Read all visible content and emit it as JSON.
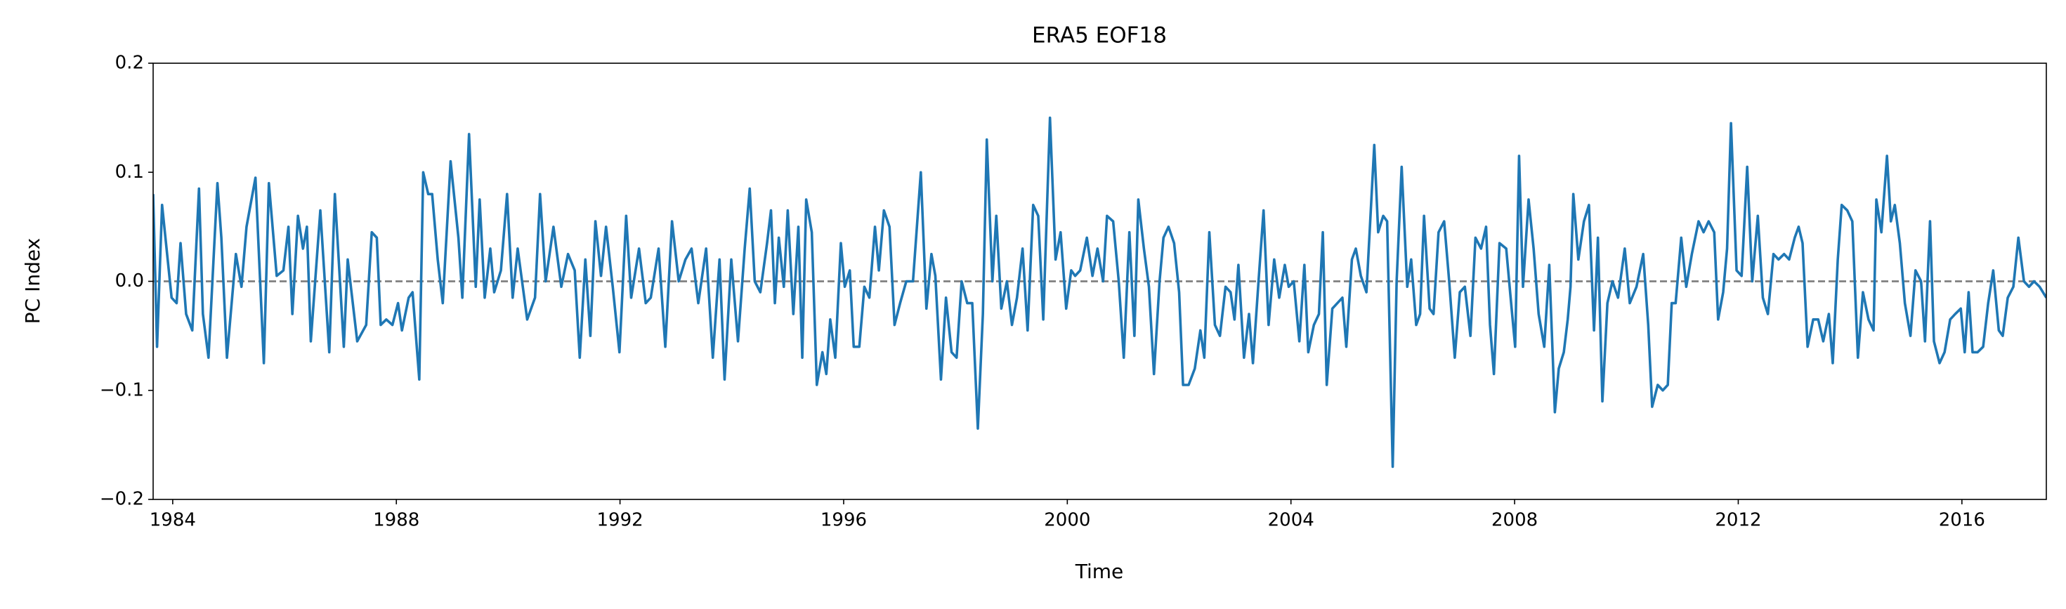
{
  "chart_data": {
    "type": "line",
    "title": "ERA5  EOF18",
    "xlabel": "Time",
    "ylabel": "PC Index",
    "color": "#1f77b4",
    "x": [
      1983.65,
      1983.72,
      1983.81,
      1983.98,
      1984.07,
      1984.14,
      1984.24,
      1984.35,
      1984.47,
      1984.54,
      1984.64,
      1984.8,
      1984.87,
      1984.97,
      1985.13,
      1985.23,
      1985.32,
      1985.48,
      1985.63,
      1985.72,
      1985.86,
      1985.98,
      1986.07,
      1986.14,
      1986.24,
      1986.33,
      1986.4,
      1986.47,
      1986.64,
      1986.8,
      1986.9,
      1987.06,
      1987.13,
      1987.3,
      1987.46,
      1987.56,
      1987.65,
      1987.72,
      1987.82,
      1987.93,
      1988.03,
      1988.1,
      1988.22,
      1988.29,
      1988.41,
      1988.48,
      1988.57,
      1988.64,
      1988.74,
      1988.83,
      1988.97,
      1989.11,
      1989.18,
      1989.3,
      1989.42,
      1989.49,
      1989.58,
      1989.68,
      1989.75,
      1989.87,
      1989.98,
      1990.08,
      1990.17,
      1990.34,
      1990.48,
      1990.57,
      1990.67,
      1990.81,
      1990.95,
      1991.07,
      1991.19,
      1991.28,
      1991.38,
      1991.47,
      1991.56,
      1991.66,
      1991.75,
      1991.87,
      1991.99,
      1992.11,
      1992.2,
      1992.34,
      1992.46,
      1992.55,
      1992.69,
      1992.81,
      1992.93,
      1993.05,
      1993.17,
      1993.28,
      1993.4,
      1993.54,
      1993.66,
      1993.78,
      1993.87,
      1993.99,
      1994.11,
      1994.23,
      1994.32,
      1994.41,
      1994.51,
      1994.63,
      1994.7,
      1994.77,
      1994.84,
      1994.93,
      1995.0,
      1995.1,
      1995.19,
      1995.26,
      1995.33,
      1995.43,
      1995.52,
      1995.62,
      1995.69,
      1995.76,
      1995.85,
      1995.95,
      1996.02,
      1996.11,
      1996.18,
      1996.28,
      1996.37,
      1996.46,
      1996.56,
      1996.63,
      1996.72,
      1996.82,
      1996.91,
      1997.01,
      1997.12,
      1997.24,
      1997.38,
      1997.48,
      1997.57,
      1997.64,
      1997.74,
      1997.83,
      1997.93,
      1998.02,
      1998.11,
      1998.21,
      1998.3,
      1998.4,
      1998.49,
      1998.56,
      1998.66,
      1998.73,
      1998.82,
      1998.92,
      1999.01,
      1999.1,
      1999.2,
      1999.29,
      1999.39,
      1999.48,
      1999.57,
      1999.69,
      1999.79,
      1999.88,
      1999.98,
      2000.07,
      2000.14,
      2000.23,
      2000.35,
      2000.45,
      2000.54,
      2000.64,
      2000.71,
      2000.82,
      2000.92,
      2001.01,
      2001.11,
      2001.2,
      2001.27,
      2001.37,
      2001.46,
      2001.55,
      2001.65,
      2001.72,
      2001.81,
      2001.91,
      2002.0,
      2002.07,
      2002.17,
      2002.28,
      2002.38,
      2002.45,
      2002.54,
      2002.64,
      2002.73,
      2002.83,
      2002.92,
      2002.99,
      2003.06,
      2003.16,
      2003.25,
      2003.32,
      2003.42,
      2003.51,
      2003.6,
      2003.7,
      2003.79,
      2003.89,
      2003.96,
      2004.05,
      2004.15,
      2004.24,
      2004.31,
      2004.41,
      2004.5,
      2004.57,
      2004.64,
      2004.74,
      2004.83,
      2004.92,
      2004.99,
      2005.09,
      2005.16,
      2005.25,
      2005.35,
      2005.49,
      2005.56,
      2005.65,
      2005.72,
      2005.82,
      2005.89,
      2005.98,
      2006.08,
      2006.15,
      2006.24,
      2006.31,
      2006.38,
      2006.48,
      2006.55,
      2006.64,
      2006.74,
      2006.83,
      2006.93,
      2007.02,
      2007.11,
      2007.21,
      2007.3,
      2007.4,
      2007.49,
      2007.56,
      2007.63,
      2007.73,
      2007.85,
      2007.92,
      2008.01,
      2008.08,
      2008.15,
      2008.25,
      2008.34,
      2008.43,
      2008.53,
      2008.62,
      2008.72,
      2008.79,
      2008.88,
      2008.95,
      2009.0,
      2009.05,
      2009.14,
      2009.24,
      2009.33,
      2009.42,
      2009.49,
      2009.57,
      2009.66,
      2009.75,
      2009.85,
      2009.97,
      2010.06,
      2010.18,
      2010.3,
      2010.39,
      2010.46,
      2010.56,
      2010.65,
      2010.74,
      2010.81,
      2010.88,
      2010.98,
      2011.07,
      2011.17,
      2011.29,
      2011.38,
      2011.47,
      2011.57,
      2011.64,
      2011.73,
      2011.8,
      2011.87,
      2011.97,
      2012.06,
      2012.16,
      2012.25,
      2012.35,
      2012.44,
      2012.53,
      2012.63,
      2012.72,
      2012.82,
      2012.91,
      2013.01,
      2013.08,
      2013.15,
      2013.24,
      2013.34,
      2013.43,
      2013.52,
      2013.62,
      2013.69,
      2013.78,
      2013.85,
      2013.95,
      2014.04,
      2014.14,
      2014.23,
      2014.33,
      2014.42,
      2014.47,
      2014.56,
      2014.66,
      2014.73,
      2014.8,
      2014.89,
      2014.98,
      2015.08,
      2015.17,
      2015.27,
      2015.34,
      2015.43,
      2015.5,
      2015.6,
      2015.69,
      2015.79,
      2015.88,
      2015.98,
      2016.05,
      2016.12,
      2016.19,
      2016.28,
      2016.38,
      2016.47,
      2016.56,
      2016.66,
      2016.73,
      2016.82,
      2016.92,
      2017.01,
      2017.11,
      2017.2,
      2017.29,
      2017.39,
      2017.51
    ],
    "values": [
      0.08,
      -0.06,
      0.07,
      -0.015,
      -0.02,
      0.035,
      -0.03,
      -0.045,
      0.085,
      -0.03,
      -0.07,
      0.09,
      0.04,
      -0.07,
      0.025,
      -0.005,
      0.05,
      0.095,
      -0.075,
      0.09,
      0.005,
      0.01,
      0.05,
      -0.03,
      0.06,
      0.03,
      0.05,
      -0.055,
      0.065,
      -0.065,
      0.08,
      -0.06,
      0.02,
      -0.055,
      -0.04,
      0.045,
      0.04,
      -0.04,
      -0.035,
      -0.04,
      -0.02,
      -0.045,
      -0.015,
      -0.01,
      -0.09,
      0.1,
      0.08,
      0.08,
      0.02,
      -0.02,
      0.11,
      0.04,
      -0.015,
      0.135,
      -0.005,
      0.075,
      -0.015,
      0.03,
      -0.01,
      0.01,
      0.08,
      -0.015,
      0.03,
      -0.035,
      -0.015,
      0.08,
      0.0,
      0.05,
      -0.005,
      0.025,
      0.01,
      -0.07,
      0.02,
      -0.05,
      0.055,
      0.005,
      0.05,
      -0.005,
      -0.065,
      0.06,
      -0.015,
      0.03,
      -0.02,
      -0.015,
      0.03,
      -0.06,
      0.055,
      0.0,
      0.02,
      0.03,
      -0.02,
      0.03,
      -0.07,
      0.02,
      -0.09,
      0.02,
      -0.055,
      0.03,
      0.085,
      0.0,
      -0.01,
      0.035,
      0.065,
      -0.02,
      0.04,
      -0.005,
      0.065,
      -0.03,
      0.05,
      -0.07,
      0.075,
      0.045,
      -0.095,
      -0.065,
      -0.085,
      -0.035,
      -0.07,
      0.035,
      -0.005,
      0.01,
      -0.06,
      -0.06,
      -0.005,
      -0.015,
      0.05,
      0.01,
      0.065,
      0.05,
      -0.04,
      -0.02,
      0.0,
      0.0,
      0.1,
      -0.025,
      0.025,
      0.005,
      -0.09,
      -0.015,
      -0.065,
      -0.07,
      0.0,
      -0.02,
      -0.02,
      -0.135,
      -0.03,
      0.13,
      0.0,
      0.06,
      -0.025,
      0.0,
      -0.04,
      -0.015,
      0.03,
      -0.045,
      0.07,
      0.06,
      -0.035,
      0.15,
      0.02,
      0.045,
      -0.025,
      0.01,
      0.005,
      0.01,
      0.04,
      0.005,
      0.03,
      0.0,
      0.06,
      0.055,
      0.0,
      -0.07,
      0.045,
      -0.05,
      0.075,
      0.03,
      -0.005,
      -0.085,
      0.0,
      0.04,
      0.05,
      0.035,
      -0.01,
      -0.095,
      -0.095,
      -0.08,
      -0.045,
      -0.07,
      0.045,
      -0.04,
      -0.05,
      -0.005,
      -0.01,
      -0.035,
      0.015,
      -0.07,
      -0.03,
      -0.075,
      0.0,
      0.065,
      -0.04,
      0.02,
      -0.015,
      0.015,
      -0.005,
      0.0,
      -0.055,
      0.015,
      -0.065,
      -0.04,
      -0.03,
      0.045,
      -0.095,
      -0.025,
      -0.02,
      -0.015,
      -0.06,
      0.02,
      0.03,
      0.005,
      -0.01,
      0.125,
      0.045,
      0.06,
      0.055,
      -0.17,
      0.0,
      0.105,
      -0.005,
      0.02,
      -0.04,
      -0.03,
      0.06,
      -0.025,
      -0.03,
      0.045,
      0.055,
      0.0,
      -0.07,
      -0.01,
      -0.005,
      -0.05,
      0.04,
      0.03,
      0.05,
      -0.04,
      -0.085,
      0.035,
      0.03,
      -0.01,
      -0.06,
      0.115,
      -0.005,
      0.075,
      0.03,
      -0.03,
      -0.06,
      0.015,
      -0.12,
      -0.08,
      -0.065,
      -0.035,
      -0.005,
      0.08,
      0.02,
      0.055,
      0.07,
      -0.045,
      0.04,
      -0.11,
      -0.02,
      0.0,
      -0.015,
      0.03,
      -0.02,
      -0.005,
      0.025,
      -0.04,
      -0.115,
      -0.095,
      -0.1,
      -0.095,
      -0.02,
      -0.02,
      0.04,
      -0.005,
      0.025,
      0.055,
      0.045,
      0.055,
      0.045,
      -0.035,
      -0.01,
      0.03,
      0.145,
      0.01,
      0.005,
      0.105,
      0.0,
      0.06,
      -0.015,
      -0.03,
      0.025,
      0.02,
      0.025,
      0.02,
      0.04,
      0.05,
      0.035,
      -0.06,
      -0.035,
      -0.035,
      -0.055,
      -0.03,
      -0.075,
      0.02,
      0.07,
      0.065,
      0.055,
      -0.07,
      -0.01,
      -0.035,
      -0.045,
      0.075,
      0.045,
      0.115,
      0.055,
      0.07,
      0.035,
      -0.02,
      -0.05,
      0.01,
      0.0,
      -0.055,
      0.055,
      -0.055,
      -0.075,
      -0.065,
      -0.035,
      -0.03,
      -0.025,
      -0.065,
      -0.01,
      -0.065,
      -0.065,
      -0.06,
      -0.02,
      0.01,
      -0.045,
      -0.05,
      -0.015,
      -0.005,
      0.04,
      0.0,
      -0.005,
      0.0,
      -0.005,
      -0.015
    ],
    "xlim": [
      1983.65,
      2017.51
    ],
    "xticks": [
      1984,
      1988,
      1992,
      1996,
      2000,
      2004,
      2008,
      2012,
      2016
    ],
    "ylim": [
      -0.2,
      0.2
    ],
    "yticks": [
      {
        "value": -0.2,
        "label": "−0.2"
      },
      {
        "value": -0.1,
        "label": "−0.1"
      },
      {
        "value": 0,
        "label": "0.0"
      },
      0.1,
      0.2
    ],
    "reference_line": {
      "y": 0,
      "color": "#808080",
      "style": "dashed"
    }
  }
}
